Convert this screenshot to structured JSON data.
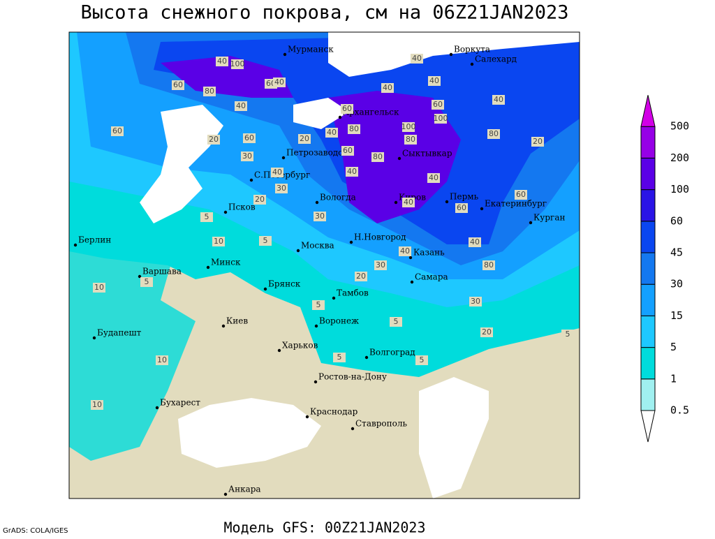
{
  "header": {
    "title": "Высота снежного покрова, см на 06Z21JAN2023"
  },
  "footer": {
    "model": "Модель GFS: 00Z21JAN2023",
    "credit": "GrADS: COLA/IGES"
  },
  "legend": {
    "levels": [
      0.5,
      1,
      5,
      15,
      30,
      45,
      60,
      100,
      200,
      500
    ],
    "colors": [
      "#ffffff",
      "#a0f0f0",
      "#00dcdc",
      "#1ec8ff",
      "#14a0ff",
      "#1478f0",
      "#0a46f0",
      "#2a14e6",
      "#5a00e6",
      "#9600e6",
      "#d200e6"
    ]
  },
  "map": {
    "cities": [
      "Мурманск",
      "Воркута",
      "Салехард",
      "Архангельск",
      "Петрозаводск",
      "Сыктывкар",
      "С.Петербург",
      "Вологда",
      "Киров",
      "Пермь",
      "Екатеринбург",
      "Курган",
      "Псков",
      "Берлин",
      "Москва",
      "Н.Новгород",
      "Казань",
      "Минск",
      "Варшава",
      "Брянск",
      "Самара",
      "Тамбов",
      "Воронеж",
      "Киев",
      "Будапешт",
      "Харьков",
      "Волгоград",
      "Ростов-на-Дону",
      "Бухарест",
      "Краснодар",
      "Ставрополь",
      "Анкара"
    ],
    "contour_labels": [
      40,
      100,
      60,
      80,
      60,
      40,
      40,
      60,
      20,
      60,
      30,
      40,
      30,
      20,
      5,
      10,
      5,
      5,
      10,
      5,
      5,
      10,
      10,
      5,
      5,
      20,
      30,
      30,
      20,
      5,
      40,
      40,
      40,
      60,
      100,
      100,
      80,
      80,
      60,
      40,
      20,
      60,
      80,
      40,
      40,
      40,
      60,
      30,
      40,
      80,
      40,
      60,
      80,
      40,
      20
    ]
  }
}
